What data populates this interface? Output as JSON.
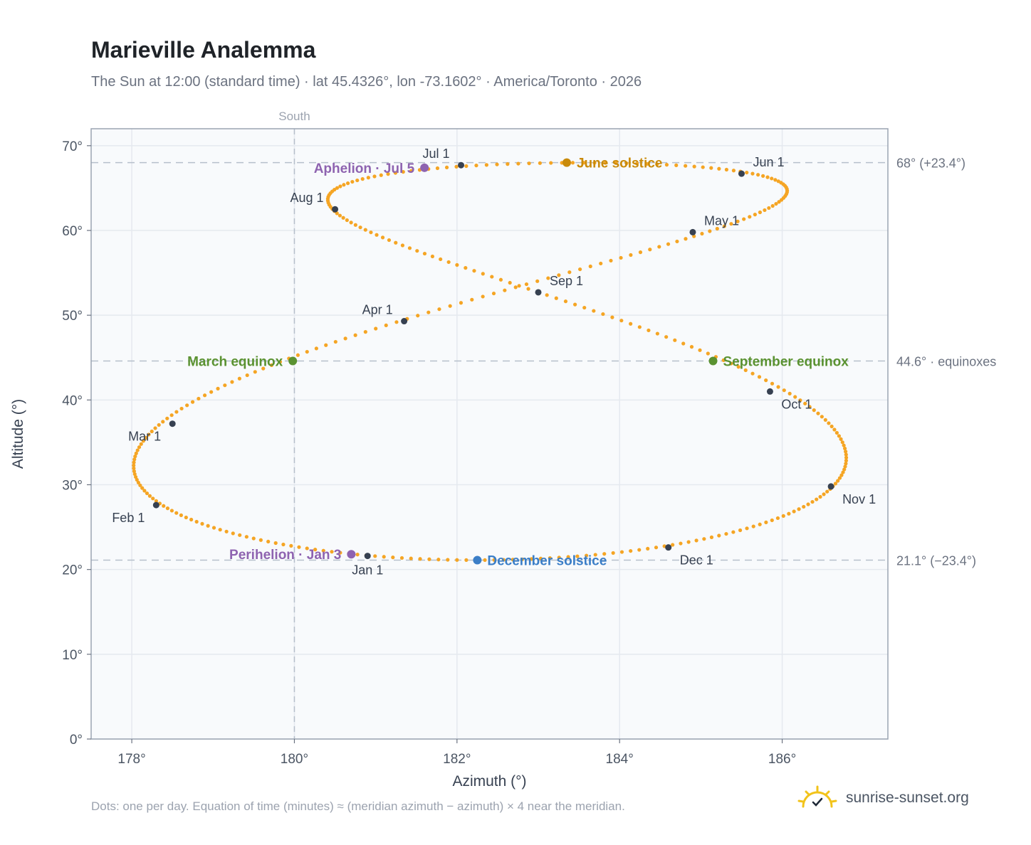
{
  "header": {
    "title": "Marieville Analemma",
    "subtitle": "The Sun at 12:00 (standard time) · lat 45.4326°, lon -73.1602° · America/Toronto · 2026"
  },
  "footer": {
    "note": "Dots: one per day. Equation of time (minutes) ≈ (meridian azimuth − azimuth) × 4 near the meridian.",
    "brand": "sunrise-sunset.org"
  },
  "colors": {
    "curve": "#f5a524",
    "month_dot": "#374151",
    "solstice_june": "#c98a0a",
    "solstice_december": "#3b7ec7",
    "equinox": "#5a9231",
    "apsis": "#8e63b0",
    "grid": "#e5e9ef",
    "reference_line": "#b6bfcb",
    "plot_background": "#f8fafc",
    "brand_sun": "#f2c31a"
  },
  "chart_data": {
    "type": "scatter",
    "xlabel": "Azimuth (°)",
    "ylabel": "Altitude (°)",
    "xlim": [
      177.5,
      187.3
    ],
    "ylim": [
      0,
      72
    ],
    "xticks": [
      178,
      180,
      182,
      184,
      186
    ],
    "yticks": [
      0,
      10,
      20,
      30,
      40,
      50,
      60,
      70
    ],
    "tick_suffix": "°",
    "grid": true,
    "meridian": {
      "x": 180,
      "label": "South"
    },
    "reference_lines": [
      {
        "y": 68.0,
        "label": "68° (+23.4°)"
      },
      {
        "y": 44.6,
        "label": "44.6° · equinoxes"
      },
      {
        "y": 21.1,
        "label": "21.1° (−23.4°)"
      }
    ],
    "month_markers": [
      {
        "label": "Jan 1",
        "x": 180.9,
        "y": 21.6,
        "pos": "below"
      },
      {
        "label": "Feb 1",
        "x": 178.3,
        "y": 27.6,
        "pos": "below-left"
      },
      {
        "label": "Mar 1",
        "x": 178.5,
        "y": 37.2,
        "pos": "below-left"
      },
      {
        "label": "Apr 1",
        "x": 181.35,
        "y": 49.3,
        "pos": "above-left"
      },
      {
        "label": "May 1",
        "x": 184.9,
        "y": 59.8,
        "pos": "above-right"
      },
      {
        "label": "Jun 1",
        "x": 185.5,
        "y": 66.7,
        "pos": "above-right"
      },
      {
        "label": "Jul 1",
        "x": 182.05,
        "y": 67.7,
        "pos": "above-left"
      },
      {
        "label": "Aug 1",
        "x": 180.5,
        "y": 62.5,
        "pos": "above-left"
      },
      {
        "label": "Sep 1",
        "x": 183.0,
        "y": 52.7,
        "pos": "above-right"
      },
      {
        "label": "Oct 1",
        "x": 185.85,
        "y": 41.0,
        "pos": "below-right"
      },
      {
        "label": "Nov 1",
        "x": 186.6,
        "y": 29.8,
        "pos": "below-right"
      },
      {
        "label": "Dec 1",
        "x": 184.6,
        "y": 22.6,
        "pos": "below-right"
      }
    ],
    "events": [
      {
        "label": "June solstice",
        "x": 183.35,
        "y": 68.0,
        "color": "#c98a0a",
        "side": "right"
      },
      {
        "label": "December solstice",
        "x": 182.25,
        "y": 21.1,
        "color": "#3b7ec7",
        "side": "right"
      },
      {
        "label": "March equinox",
        "x": 179.98,
        "y": 44.6,
        "color": "#5a9231",
        "side": "left"
      },
      {
        "label": "September equinox",
        "x": 185.15,
        "y": 44.6,
        "color": "#5a9231",
        "side": "right"
      },
      {
        "label": "Aphelion · Jul 5",
        "x": 181.6,
        "y": 67.4,
        "color": "#8e63b0",
        "side": "left"
      },
      {
        "label": "Perihelion · Jan 3",
        "x": 180.7,
        "y": 21.8,
        "color": "#8e63b0",
        "side": "left"
      }
    ]
  }
}
